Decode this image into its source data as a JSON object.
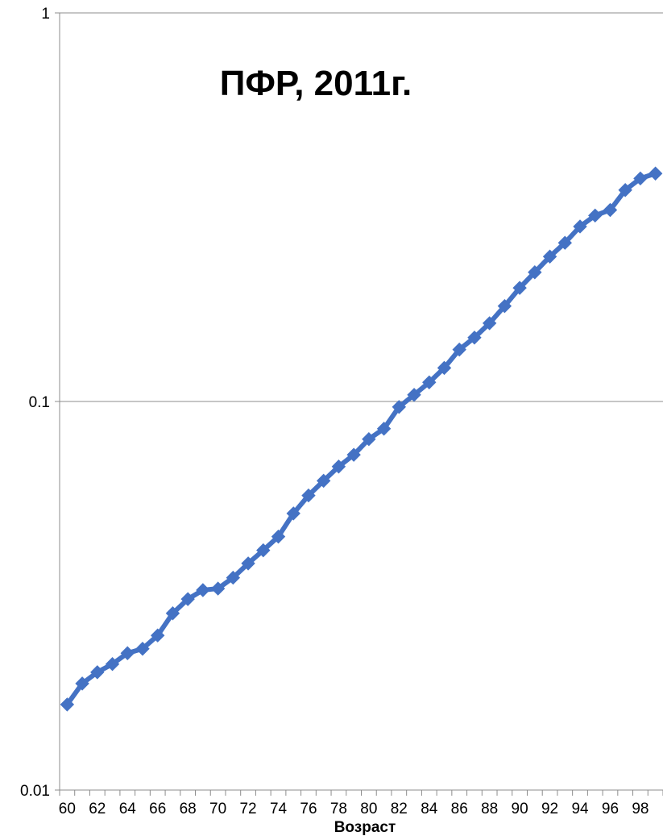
{
  "chart_data": {
    "type": "line",
    "title": "ПФР, 2011г.",
    "xlabel": "Возраст",
    "ylabel": "",
    "y_scale": "log",
    "ylim": [
      0.01,
      1
    ],
    "y_ticks": [
      0.01,
      0.1,
      1
    ],
    "y_tick_labels": [
      "0.01",
      "0.1",
      "1"
    ],
    "x_tick_labels": [
      "60",
      "62",
      "64",
      "66",
      "68",
      "70",
      "72",
      "74",
      "76",
      "78",
      "80",
      "82",
      "84",
      "86",
      "88",
      "90",
      "92",
      "94",
      "96",
      "98"
    ],
    "grid": true,
    "legend": "none",
    "color": "#4472C4",
    "marker": "diamond",
    "series": [
      {
        "x": [
          60,
          61,
          62,
          63,
          64,
          65,
          66,
          67,
          68,
          69,
          70,
          71,
          72,
          73,
          74,
          75,
          76,
          77,
          78,
          79,
          80,
          81,
          82,
          83,
          84,
          85,
          86,
          87,
          88,
          89,
          90,
          91,
          92,
          93,
          94,
          95,
          96,
          97,
          98,
          99
        ],
        "values": [
          0.0166,
          0.0188,
          0.0201,
          0.0211,
          0.0225,
          0.0231,
          0.025,
          0.0285,
          0.031,
          0.0327,
          0.033,
          0.0352,
          0.0383,
          0.0414,
          0.0449,
          0.0515,
          0.0573,
          0.0625,
          0.068,
          0.0729,
          0.08,
          0.0851,
          0.0968,
          0.104,
          0.112,
          0.122,
          0.136,
          0.146,
          0.159,
          0.176,
          0.196,
          0.215,
          0.236,
          0.256,
          0.282,
          0.301,
          0.311,
          0.35,
          0.375,
          0.386
        ]
      }
    ]
  }
}
